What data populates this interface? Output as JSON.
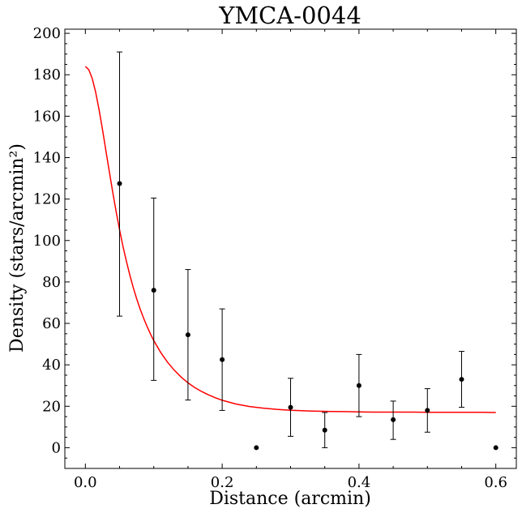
{
  "chart_data": {
    "type": "scatter",
    "title": "YMCA-0044",
    "xlabel": "Distance (arcmin)",
    "ylabel": "Density (stars/arcmin²)",
    "xlim": [
      -0.03,
      0.63
    ],
    "ylim": [
      -10,
      202
    ],
    "xticks": [
      0.0,
      0.2,
      0.4,
      0.6
    ],
    "xtick_labels": [
      "0.0",
      "0.2",
      "0.4",
      "0.6"
    ],
    "yticks": [
      0,
      20,
      40,
      60,
      80,
      100,
      120,
      140,
      160,
      180,
      200
    ],
    "ytick_labels": [
      "0",
      "20",
      "40",
      "60",
      "80",
      "100",
      "120",
      "140",
      "160",
      "180",
      "200"
    ],
    "grid": false,
    "legend": "none",
    "points": [
      {
        "x": 0.05,
        "y": 127.5,
        "ylo": 63.5,
        "yhi": 191.0
      },
      {
        "x": 0.1,
        "y": 76.0,
        "ylo": 32.5,
        "yhi": 120.5
      },
      {
        "x": 0.15,
        "y": 54.5,
        "ylo": 23.0,
        "yhi": 86.0
      },
      {
        "x": 0.2,
        "y": 42.5,
        "ylo": 18.0,
        "yhi": 67.0
      },
      {
        "x": 0.25,
        "y": 0.0,
        "ylo": null,
        "yhi": null
      },
      {
        "x": 0.3,
        "y": 19.5,
        "ylo": 5.5,
        "yhi": 33.5
      },
      {
        "x": 0.35,
        "y": 8.5,
        "ylo": 0.0,
        "yhi": 17.0
      },
      {
        "x": 0.4,
        "y": 30.0,
        "ylo": 15.0,
        "yhi": 45.0
      },
      {
        "x": 0.45,
        "y": 13.5,
        "ylo": 4.0,
        "yhi": 22.5
      },
      {
        "x": 0.5,
        "y": 18.0,
        "ylo": 7.5,
        "yhi": 28.5
      },
      {
        "x": 0.55,
        "y": 33.0,
        "ylo": 19.5,
        "yhi": 46.5
      },
      {
        "x": 0.6,
        "y": 0.0,
        "ylo": null,
        "yhi": null
      }
    ],
    "fit": {
      "color": "#ff0000",
      "x": [
        0.0,
        0.005,
        0.01,
        0.015,
        0.02,
        0.025,
        0.03,
        0.035,
        0.04,
        0.045,
        0.05,
        0.055,
        0.06,
        0.065,
        0.07,
        0.075,
        0.08,
        0.085,
        0.09,
        0.095,
        0.1,
        0.11,
        0.12,
        0.13,
        0.14,
        0.15,
        0.16,
        0.17,
        0.18,
        0.19,
        0.2,
        0.22,
        0.24,
        0.26,
        0.28,
        0.3,
        0.32,
        0.34,
        0.36,
        0.38,
        0.4,
        0.42,
        0.44,
        0.46,
        0.48,
        0.5,
        0.52,
        0.54,
        0.56,
        0.58,
        0.6
      ],
      "y": [
        184.0,
        182.5,
        178.2,
        171.6,
        163.2,
        153.7,
        143.5,
        133.2,
        123.3,
        113.9,
        105.2,
        97.2,
        89.9,
        83.3,
        77.3,
        71.9,
        67.0,
        62.6,
        58.6,
        55.0,
        51.7,
        46.0,
        41.3,
        37.4,
        34.1,
        31.3,
        29.0,
        27.1,
        25.5,
        24.1,
        22.9,
        21.1,
        19.9,
        19.1,
        18.5,
        18.1,
        17.8,
        17.6,
        17.5,
        17.4,
        17.3,
        17.2,
        17.2,
        17.2,
        17.2,
        17.1,
        17.1,
        17.1,
        17.1,
        17.1,
        17.0
      ]
    }
  }
}
